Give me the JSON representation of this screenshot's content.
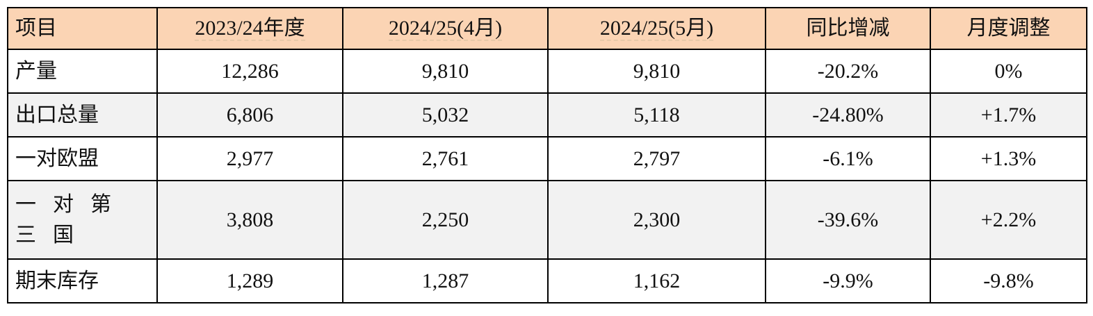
{
  "table": {
    "header": [
      "项目",
      "2023/24年度",
      "2024/25(4月)",
      "2024/25(5月)",
      "同比增减",
      "月度调整"
    ],
    "rows": [
      [
        "产量",
        "12,286",
        "9,810",
        "9,810",
        "-20.2%",
        "0%"
      ],
      [
        "出口总量",
        "6,806",
        "5,032",
        "5,118",
        "-24.80%",
        "+1.7%"
      ],
      [
        "一对欧盟",
        "2,977",
        "2,761",
        "2,797",
        "-6.1%",
        "+1.3%"
      ],
      [
        "一对第三国",
        "3,808",
        "2,250",
        "2,300",
        "-39.6%",
        "+2.2%"
      ],
      [
        "期末库存",
        "1,289",
        "1,287",
        "1,162",
        "-9.9%",
        "-9.8%"
      ]
    ]
  }
}
